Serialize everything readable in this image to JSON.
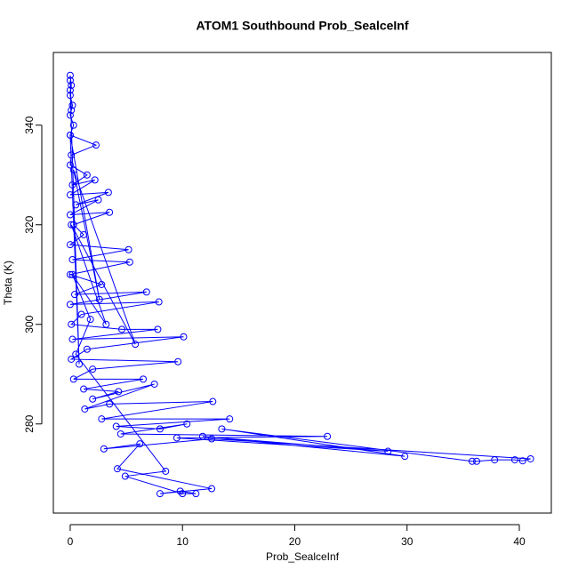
{
  "chart_data": {
    "type": "line",
    "title": "ATOM1 Southbound Prob_SealceInf",
    "x_label": "Prob_SealceInf",
    "y_label": "Theta (K)",
    "color": "#0000ff",
    "markers": "open-circle",
    "xlim": [
      -1.5,
      42.85
    ],
    "ylim": [
      262.1,
      354.6
    ],
    "xticks": [
      0,
      10,
      20,
      30,
      40
    ],
    "yticks": [
      280,
      300,
      320,
      340
    ],
    "x": [
      0,
      0.1,
      0,
      0.2,
      0,
      0.3,
      0,
      2.3,
      0.1,
      0,
      1.5,
      0.2,
      2.2,
      0,
      3.4,
      0.5,
      2.5,
      0,
      3.5,
      0.3,
      1.2,
      0,
      5.2,
      0.2,
      5.3,
      0,
      2.8,
      0.4,
      6.8,
      0,
      7.9,
      1,
      0.1,
      4.6,
      7.8,
      0.2,
      10.1,
      1.5,
      0.1,
      9.6,
      2,
      0.3,
      6.5,
      1.2,
      4.3,
      2,
      7.5,
      1.3,
      3.5,
      12.7,
      2.8,
      14.2,
      4.1,
      8,
      10.4,
      4.5,
      22.9,
      9.5,
      28.3,
      11.8,
      29.8,
      13.5,
      35.8,
      36.2,
      37.8,
      39.6,
      40.3,
      41,
      12.6,
      3,
      6.2,
      4.2,
      12.6,
      8,
      9.8,
      11.2,
      10,
      4.9,
      8.5,
      0.5,
      1.8,
      0.2,
      3.2,
      0.1,
      5.8,
      0.3,
      2.6,
      0,
      0.8,
      0,
      0.1,
      0
    ],
    "values": [
      350,
      348,
      346,
      344,
      342,
      340,
      338,
      336,
      334,
      332,
      330,
      328,
      329,
      326,
      326.5,
      324,
      325,
      322,
      322.5,
      320,
      318,
      316,
      315,
      313,
      312.5,
      310,
      308,
      306,
      306.5,
      304,
      304.5,
      302,
      300,
      299,
      299,
      297,
      297.5,
      295,
      293,
      292.5,
      291,
      289,
      289,
      287,
      286.5,
      285,
      288,
      283,
      284,
      284.5,
      281,
      281,
      279.5,
      279,
      280,
      278,
      277.5,
      277.2,
      274.5,
      277.5,
      273.5,
      279,
      272.5,
      272.5,
      272.8,
      272.8,
      272.6,
      273,
      277,
      275,
      276,
      271,
      267,
      266,
      266.5,
      266,
      266,
      269.5,
      270.5,
      294,
      301,
      310,
      300,
      320,
      296,
      331,
      305,
      338,
      292,
      347,
      343,
      349
    ]
  }
}
